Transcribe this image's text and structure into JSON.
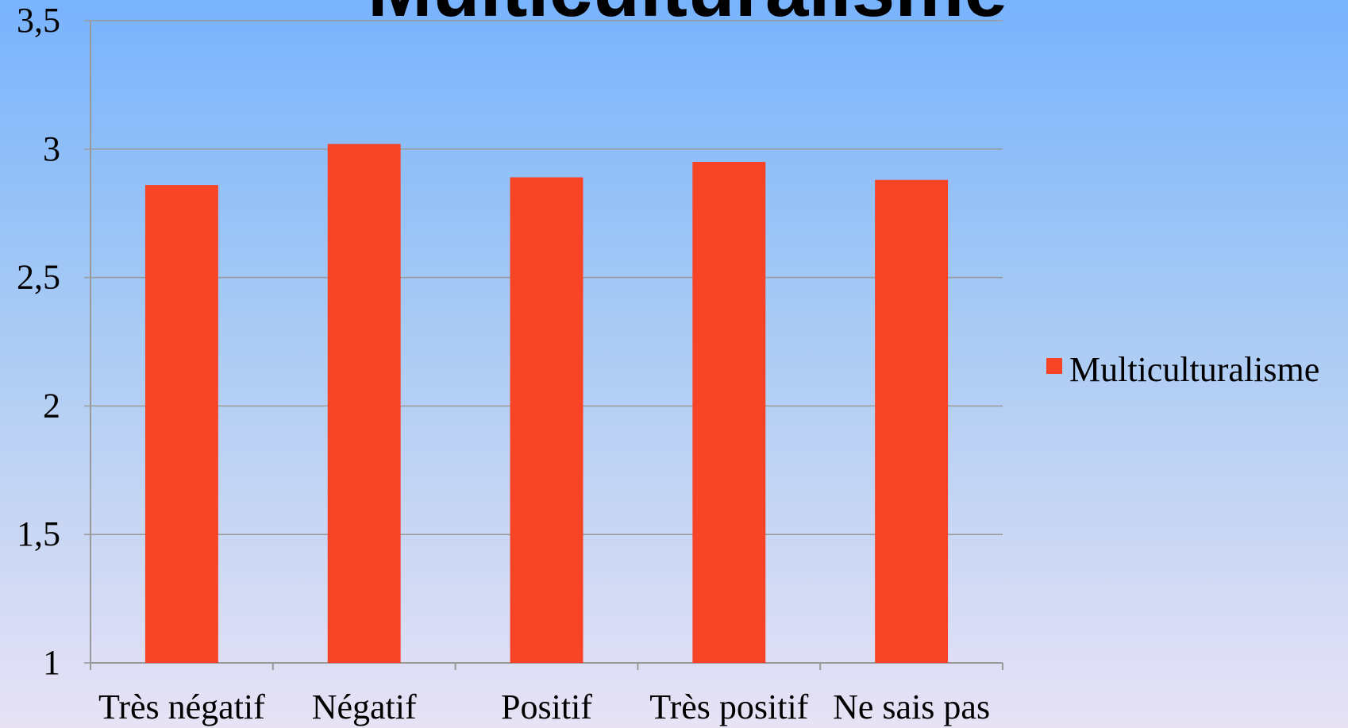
{
  "chart_data": {
    "type": "bar",
    "title": "Multiculturalisme",
    "categories": [
      "Très négatif",
      "Négatif",
      "Positif",
      "Très positif",
      "Ne sais pas"
    ],
    "series": [
      {
        "name": "Multiculturalisme",
        "color": "#f74427",
        "values": [
          2.86,
          3.02,
          2.89,
          2.95,
          2.88
        ]
      }
    ],
    "ylim": [
      1,
      3.5
    ],
    "yticks": [
      1,
      {
        "value": 1.5,
        "label": "1,5"
      },
      2,
      {
        "value": 2.5,
        "label": "2,5"
      },
      3,
      {
        "value": 3.5,
        "label": "3,5"
      }
    ],
    "grid": true,
    "legend": "right"
  }
}
